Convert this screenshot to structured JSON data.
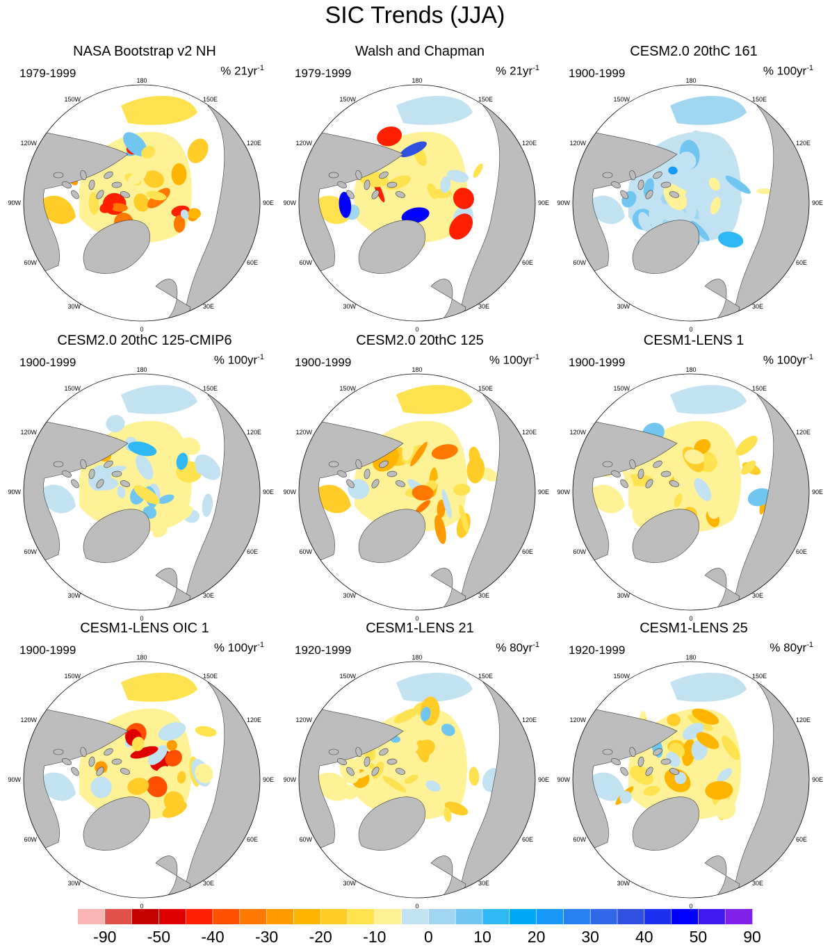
{
  "title": "SIC Trends (JJA)",
  "panels": [
    {
      "title": "NASA Bootstrap v2 NH",
      "period": "1979-1999",
      "units": "% 21yr",
      "units_exp": "-1",
      "pattern": "obs_nasa"
    },
    {
      "title": "Walsh and Chapman",
      "period": "1979-1999",
      "units": "% 21yr",
      "units_exp": "-1",
      "pattern": "obs_walsh"
    },
    {
      "title": "CESM2.0 20thC 161",
      "period": "1900-1999",
      "units": "% 100yr",
      "units_exp": "-1",
      "pattern": "blue"
    },
    {
      "title": "CESM2.0 20thC 125-CMIP6",
      "period": "1900-1999",
      "units": "% 100yr",
      "units_exp": "-1",
      "pattern": "mixed_blue"
    },
    {
      "title": "CESM2.0 20thC 125",
      "period": "1900-1999",
      "units": "% 100yr",
      "units_exp": "-1",
      "pattern": "orange"
    },
    {
      "title": "CESM1-LENS 1",
      "period": "1900-1999",
      "units": "% 100yr",
      "units_exp": "-1",
      "pattern": "mixed_yellow"
    },
    {
      "title": "CESM1-LENS OIC 1",
      "period": "1900-1999",
      "units": "% 100yr",
      "units_exp": "-1",
      "pattern": "yellow_red"
    },
    {
      "title": "CESM1-LENS 21",
      "period": "1920-1999",
      "units": "% 80yr",
      "units_exp": "-1",
      "pattern": "mixed_yellow"
    },
    {
      "title": "CESM1-LENS 25",
      "period": "1920-1999",
      "units": "% 80yr",
      "units_exp": "-1",
      "pattern": "mixed_blue2"
    }
  ],
  "longitude_labels": [
    "180",
    "150E",
    "120E",
    "90E",
    "60E",
    "30E",
    "0",
    "30W",
    "60W",
    "90W",
    "120W",
    "150W"
  ],
  "colorbar": {
    "colors": [
      "#f9b4b4",
      "#e2504a",
      "#c40000",
      "#e00000",
      "#ff2000",
      "#ff5000",
      "#ff7800",
      "#ff9a00",
      "#ffb400",
      "#ffcc28",
      "#ffe250",
      "#fff296",
      "#c2e2f2",
      "#a0d6f0",
      "#70c6f0",
      "#30b8f4",
      "#00a8f8",
      "#1898f8",
      "#2880f0",
      "#3068e8",
      "#3050e0",
      "#1c30f0",
      "#0000ff",
      "#4018f0",
      "#8020e8"
    ],
    "labels": [
      "-90",
      "-50",
      "-40",
      "-30",
      "-20",
      "-10",
      "0",
      "10",
      "20",
      "30",
      "40",
      "50",
      "90"
    ]
  },
  "colors": {
    "land": "#bdbdbd",
    "ocean": "#ffffff",
    "coast": "#3a3a3a"
  }
}
